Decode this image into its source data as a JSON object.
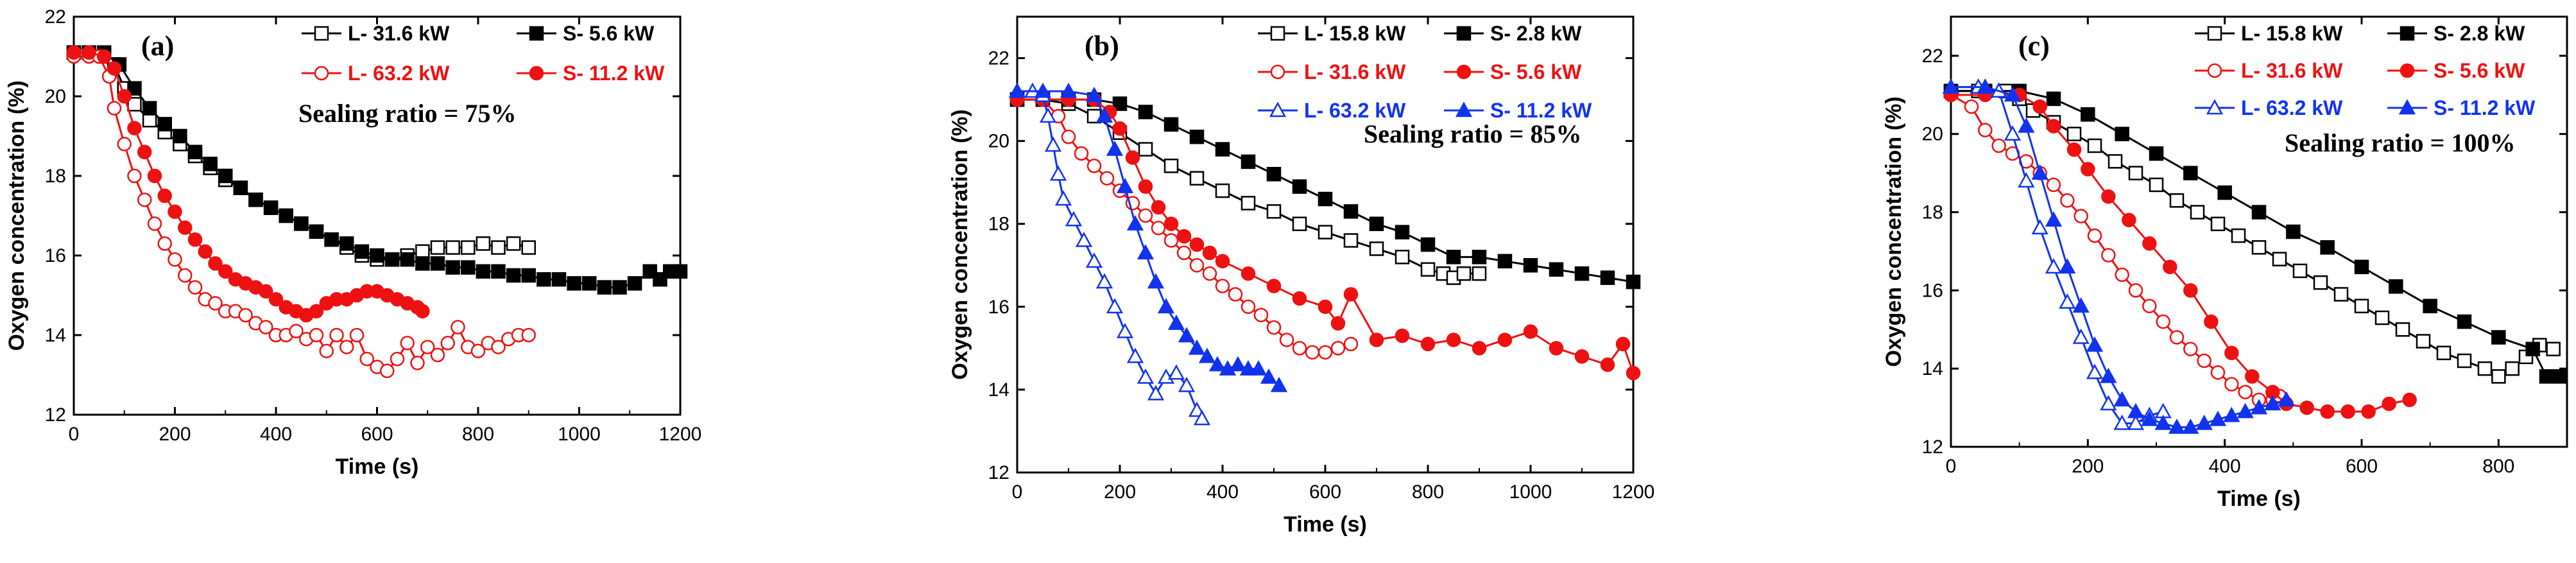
{
  "colors": {
    "black": "#000000",
    "red": "#ee1111",
    "blue": "#1133ee"
  },
  "chart_data": [
    {
      "type": "line",
      "panel_label": "(a)",
      "annotation": "Sealing ratio = 75%",
      "xlabel": "Time (s)",
      "ylabel": "Oxygen concentration (%)",
      "xlim": [
        0,
        1200
      ],
      "ylim": [
        12,
        22
      ],
      "xticks": [
        0,
        200,
        400,
        600,
        800,
        1000,
        1200
      ],
      "yticks": [
        12,
        14,
        16,
        18,
        20,
        22
      ],
      "legend_position": "top-right",
      "series": [
        {
          "name": "L- 31.6 kW",
          "color": "#000000",
          "marker": "open-square",
          "x": [
            0,
            30,
            60,
            80,
            100,
            120,
            150,
            180,
            210,
            240,
            270,
            300,
            330,
            360,
            390,
            420,
            450,
            480,
            510,
            540,
            570,
            600,
            630,
            660,
            690,
            720,
            750,
            780,
            810,
            840,
            870,
            900
          ],
          "y": [
            21.1,
            21.1,
            21.0,
            20.8,
            20.2,
            19.8,
            19.4,
            19.1,
            18.8,
            18.5,
            18.2,
            17.9,
            17.7,
            17.4,
            17.2,
            17.0,
            16.8,
            16.6,
            16.4,
            16.2,
            16.0,
            15.9,
            15.9,
            16.0,
            16.1,
            16.2,
            16.2,
            16.2,
            16.3,
            16.2,
            16.3,
            16.2
          ]
        },
        {
          "name": "S- 5.6 kW",
          "color": "#000000",
          "marker": "filled-square",
          "x": [
            0,
            30,
            60,
            90,
            120,
            150,
            180,
            210,
            240,
            270,
            300,
            330,
            360,
            390,
            420,
            450,
            480,
            510,
            540,
            570,
            600,
            630,
            660,
            690,
            720,
            750,
            780,
            810,
            840,
            870,
            900,
            930,
            960,
            990,
            1020,
            1050,
            1080,
            1110,
            1140,
            1160,
            1180,
            1200
          ],
          "y": [
            21.1,
            21.1,
            21.1,
            20.8,
            20.2,
            19.7,
            19.3,
            19.0,
            18.6,
            18.3,
            18.0,
            17.7,
            17.4,
            17.2,
            17.0,
            16.8,
            16.6,
            16.4,
            16.3,
            16.1,
            16.0,
            15.9,
            15.9,
            15.8,
            15.8,
            15.7,
            15.7,
            15.6,
            15.6,
            15.5,
            15.5,
            15.4,
            15.4,
            15.3,
            15.3,
            15.2,
            15.2,
            15.3,
            15.6,
            15.4,
            15.6,
            15.6
          ]
        },
        {
          "name": "L- 63.2 kW",
          "color": "#ee1111",
          "marker": "open-circle",
          "x": [
            0,
            30,
            50,
            70,
            80,
            100,
            120,
            140,
            160,
            180,
            200,
            220,
            240,
            260,
            280,
            300,
            320,
            340,
            360,
            380,
            400,
            420,
            440,
            460,
            480,
            500,
            520,
            540,
            560,
            580,
            600,
            620,
            640,
            660,
            680,
            700,
            720,
            740,
            760,
            780,
            800,
            820,
            840,
            860,
            880,
            900
          ],
          "y": [
            21.0,
            21.0,
            21.0,
            20.5,
            19.7,
            18.8,
            18.0,
            17.4,
            16.8,
            16.3,
            15.9,
            15.5,
            15.2,
            14.9,
            14.8,
            14.6,
            14.6,
            14.5,
            14.3,
            14.2,
            14.0,
            14.0,
            14.1,
            13.9,
            14.0,
            13.6,
            14.0,
            13.7,
            14.0,
            13.4,
            13.2,
            13.1,
            13.4,
            13.8,
            13.3,
            13.7,
            13.5,
            13.8,
            14.2,
            13.7,
            13.6,
            13.8,
            13.7,
            13.9,
            14.0,
            14.0
          ]
        },
        {
          "name": "S- 11.2 kW",
          "color": "#ee1111",
          "marker": "filled-circle",
          "x": [
            0,
            30,
            60,
            80,
            100,
            120,
            140,
            160,
            180,
            200,
            220,
            240,
            260,
            280,
            300,
            320,
            340,
            360,
            380,
            400,
            420,
            440,
            460,
            480,
            500,
            520,
            540,
            560,
            580,
            600,
            620,
            640,
            660,
            680,
            690
          ],
          "y": [
            21.1,
            21.1,
            21.0,
            20.7,
            20.0,
            19.2,
            18.6,
            18.0,
            17.5,
            17.1,
            16.7,
            16.4,
            16.1,
            15.8,
            15.6,
            15.4,
            15.3,
            15.2,
            15.1,
            14.9,
            14.7,
            14.6,
            14.5,
            14.6,
            14.8,
            14.9,
            14.9,
            15.0,
            15.1,
            15.1,
            15.0,
            14.9,
            14.8,
            14.7,
            14.6
          ]
        }
      ]
    },
    {
      "type": "line",
      "panel_label": "(b)",
      "annotation": "Sealing ratio = 85%",
      "xlabel": "Time (s)",
      "ylabel": "Oxygen concentration (%)",
      "xlim": [
        0,
        1200
      ],
      "ylim": [
        12,
        23
      ],
      "xticks": [
        0,
        200,
        400,
        600,
        800,
        1000,
        1200
      ],
      "yticks": [
        12,
        14,
        16,
        18,
        20,
        22
      ],
      "legend_position": "top-right",
      "series": [
        {
          "name": "L- 15.8 kW",
          "color": "#000000",
          "marker": "open-square",
          "x": [
            0,
            50,
            100,
            150,
            200,
            250,
            300,
            350,
            400,
            450,
            500,
            550,
            600,
            650,
            700,
            750,
            800,
            830,
            850,
            870,
            900
          ],
          "y": [
            21.0,
            21.0,
            20.9,
            20.6,
            20.2,
            19.8,
            19.4,
            19.1,
            18.8,
            18.5,
            18.3,
            18.0,
            17.8,
            17.6,
            17.4,
            17.2,
            16.9,
            16.8,
            16.7,
            16.8,
            16.8
          ]
        },
        {
          "name": "S- 2.8 kW",
          "color": "#000000",
          "marker": "filled-square",
          "x": [
            0,
            50,
            100,
            150,
            200,
            250,
            300,
            350,
            400,
            450,
            500,
            550,
            600,
            650,
            700,
            750,
            800,
            850,
            900,
            950,
            1000,
            1050,
            1100,
            1150,
            1200
          ],
          "y": [
            21.0,
            21.0,
            21.0,
            21.0,
            20.9,
            20.7,
            20.4,
            20.1,
            19.8,
            19.5,
            19.2,
            18.9,
            18.6,
            18.3,
            18.0,
            17.8,
            17.5,
            17.2,
            17.2,
            17.1,
            17.0,
            16.9,
            16.8,
            16.7,
            16.6
          ]
        },
        {
          "name": "L- 31.6 kW",
          "color": "#ee1111",
          "marker": "open-circle",
          "x": [
            0,
            50,
            80,
            100,
            125,
            150,
            175,
            200,
            225,
            250,
            275,
            300,
            325,
            350,
            375,
            400,
            425,
            450,
            475,
            500,
            525,
            550,
            575,
            600,
            625,
            650
          ],
          "y": [
            21.0,
            21.0,
            20.6,
            20.1,
            19.7,
            19.4,
            19.1,
            18.8,
            18.5,
            18.2,
            17.9,
            17.6,
            17.3,
            17.0,
            16.8,
            16.5,
            16.3,
            16.0,
            15.8,
            15.5,
            15.2,
            15.0,
            14.9,
            14.9,
            15.0,
            15.1
          ]
        },
        {
          "name": "S- 5.6 kW",
          "color": "#ee1111",
          "marker": "filled-circle",
          "x": [
            0,
            50,
            100,
            150,
            180,
            200,
            225,
            250,
            275,
            300,
            325,
            350,
            375,
            400,
            450,
            500,
            550,
            600,
            625,
            650,
            700,
            750,
            800,
            850,
            900,
            950,
            1000,
            1050,
            1100,
            1150,
            1180,
            1200
          ],
          "y": [
            21.0,
            21.0,
            21.0,
            21.0,
            20.7,
            20.3,
            19.6,
            18.9,
            18.4,
            18.0,
            17.7,
            17.5,
            17.3,
            17.1,
            16.8,
            16.5,
            16.2,
            16.0,
            15.6,
            16.3,
            15.2,
            15.3,
            15.1,
            15.2,
            15.0,
            15.2,
            15.4,
            15.0,
            14.8,
            14.6,
            15.1,
            14.4
          ]
        },
        {
          "name": "L- 63.2 kW",
          "color": "#1133ee",
          "marker": "open-triangle",
          "x": [
            0,
            30,
            50,
            60,
            70,
            80,
            90,
            110,
            130,
            150,
            170,
            190,
            210,
            230,
            250,
            270,
            290,
            310,
            330,
            350,
            360
          ],
          "y": [
            21.2,
            21.2,
            21.1,
            20.6,
            19.9,
            19.2,
            18.6,
            18.1,
            17.6,
            17.1,
            16.6,
            16.0,
            15.4,
            14.8,
            14.3,
            13.9,
            14.3,
            14.4,
            14.1,
            13.5,
            13.3
          ]
        },
        {
          "name": "S- 11.2 kW",
          "color": "#1133ee",
          "marker": "filled-triangle",
          "x": [
            0,
            50,
            100,
            150,
            170,
            190,
            210,
            230,
            250,
            270,
            290,
            310,
            330,
            350,
            370,
            390,
            410,
            430,
            450,
            470,
            490,
            510
          ],
          "y": [
            21.2,
            21.2,
            21.2,
            21.1,
            20.6,
            19.8,
            18.9,
            18.0,
            17.3,
            16.6,
            16.0,
            15.6,
            15.3,
            15.0,
            14.8,
            14.6,
            14.5,
            14.6,
            14.5,
            14.5,
            14.3,
            14.1
          ]
        }
      ]
    },
    {
      "type": "line",
      "panel_label": "(c)",
      "annotation": "Sealing ratio = 100%",
      "xlabel": "Time (s)",
      "ylabel": "Oxygen concentration (%)",
      "xlim": [
        0,
        900
      ],
      "ylim": [
        12,
        23
      ],
      "xticks": [
        0,
        200,
        400,
        600,
        800
      ],
      "yticks": [
        12,
        14,
        16,
        18,
        20,
        22
      ],
      "legend_position": "top-right",
      "series": [
        {
          "name": "L- 15.8 kW",
          "color": "#000000",
          "marker": "open-square",
          "x": [
            0,
            40,
            80,
            100,
            120,
            150,
            180,
            210,
            240,
            270,
            300,
            330,
            360,
            390,
            420,
            450,
            480,
            510,
            540,
            570,
            600,
            630,
            660,
            690,
            720,
            750,
            780,
            800,
            820,
            840,
            860,
            880
          ],
          "y": [
            21.1,
            21.1,
            21.1,
            20.9,
            20.6,
            20.3,
            20.0,
            19.7,
            19.3,
            19.0,
            18.7,
            18.3,
            18.0,
            17.7,
            17.4,
            17.1,
            16.8,
            16.5,
            16.2,
            15.9,
            15.6,
            15.3,
            15.0,
            14.7,
            14.4,
            14.2,
            14.0,
            13.8,
            14.0,
            14.3,
            14.6,
            14.5
          ]
        },
        {
          "name": "S- 2.8 kW",
          "color": "#000000",
          "marker": "filled-square",
          "x": [
            0,
            50,
            100,
            150,
            200,
            250,
            300,
            350,
            400,
            450,
            500,
            550,
            600,
            650,
            700,
            750,
            800,
            850,
            870,
            890
          ],
          "y": [
            21.1,
            21.1,
            21.1,
            20.9,
            20.5,
            20.0,
            19.5,
            19.0,
            18.5,
            18.0,
            17.5,
            17.1,
            16.6,
            16.1,
            15.6,
            15.2,
            14.8,
            14.5,
            13.8,
            13.8
          ]
        },
        {
          "name": "L- 31.6 kW",
          "color": "#ee1111",
          "marker": "open-circle",
          "x": [
            0,
            30,
            50,
            70,
            90,
            110,
            130,
            150,
            170,
            190,
            210,
            230,
            250,
            270,
            290,
            310,
            330,
            350,
            370,
            390,
            410,
            430,
            450,
            470,
            480
          ],
          "y": [
            21.0,
            20.7,
            20.1,
            19.7,
            19.5,
            19.3,
            19.0,
            18.7,
            18.3,
            17.9,
            17.4,
            16.9,
            16.4,
            16.0,
            15.6,
            15.2,
            14.8,
            14.5,
            14.2,
            13.9,
            13.6,
            13.4,
            13.2,
            13.2,
            13.3
          ]
        },
        {
          "name": "S- 5.6 kW",
          "color": "#ee1111",
          "marker": "filled-circle",
          "x": [
            0,
            50,
            100,
            130,
            150,
            180,
            200,
            230,
            260,
            290,
            320,
            350,
            380,
            410,
            440,
            470,
            490,
            520,
            550,
            580,
            610,
            640,
            670
          ],
          "y": [
            21.0,
            21.0,
            21.0,
            20.7,
            20.2,
            19.6,
            19.1,
            18.4,
            17.8,
            17.2,
            16.6,
            16.0,
            15.2,
            14.4,
            13.8,
            13.4,
            13.1,
            13.0,
            12.9,
            12.9,
            12.9,
            13.1,
            13.2
          ]
        },
        {
          "name": "L- 63.2 kW",
          "color": "#1133ee",
          "marker": "open-triangle",
          "x": [
            0,
            40,
            70,
            90,
            110,
            130,
            150,
            170,
            190,
            210,
            230,
            250,
            270,
            290,
            310
          ],
          "y": [
            21.2,
            21.2,
            21.1,
            20.0,
            18.8,
            17.6,
            16.6,
            15.7,
            14.8,
            13.9,
            13.1,
            12.6,
            12.6,
            12.8,
            12.9
          ]
        },
        {
          "name": "S- 11.2 kW",
          "color": "#1133ee",
          "marker": "filled-triangle",
          "x": [
            0,
            50,
            90,
            110,
            130,
            150,
            170,
            190,
            210,
            230,
            250,
            270,
            290,
            310,
            330,
            350,
            370,
            390,
            410,
            430,
            450,
            470,
            490
          ],
          "y": [
            21.2,
            21.2,
            21.0,
            20.2,
            19.0,
            17.8,
            16.6,
            15.6,
            14.6,
            13.8,
            13.2,
            12.9,
            12.7,
            12.6,
            12.5,
            12.5,
            12.6,
            12.7,
            12.8,
            12.9,
            13.0,
            13.1,
            13.2
          ]
        }
      ]
    }
  ]
}
